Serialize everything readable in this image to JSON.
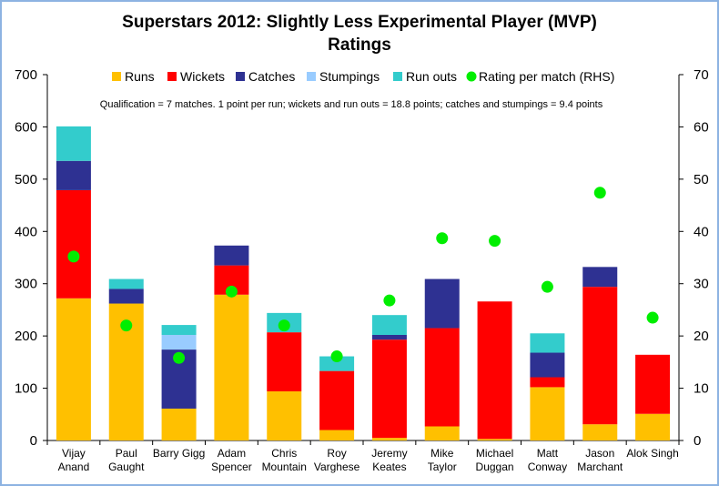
{
  "chart_data": {
    "type": "bar",
    "stacked": true,
    "title": "Superstars 2012: Slightly Less Experimental Player (MVP) Ratings",
    "title_lines": [
      "Superstars 2012: Slightly Less Experimental Player (MVP)",
      "Ratings"
    ],
    "annotation": "Qualification = 7 matches. 1 point per run; wickets and run outs = 18.8 points; catches and stumpings = 9.4 points",
    "categories": [
      [
        "Vijay",
        "Anand"
      ],
      [
        "Paul",
        "Gaught"
      ],
      [
        "Barry Gigg"
      ],
      [
        "Adam",
        "Spencer"
      ],
      [
        "Chris",
        "Mountain"
      ],
      [
        "Roy",
        "Varghese"
      ],
      [
        "Jeremy",
        "Keates"
      ],
      [
        "Mike",
        "Taylor"
      ],
      [
        "Michael",
        "Duggan"
      ],
      [
        "Matt",
        "Conway"
      ],
      [
        "Jason",
        "Marchant"
      ],
      [
        "Alok Singh"
      ]
    ],
    "series": [
      {
        "name": "Runs",
        "color": "#ffc000",
        "values": [
          272,
          262,
          61,
          279,
          94,
          20,
          5,
          27,
          3,
          102,
          31,
          51
        ]
      },
      {
        "name": "Wickets",
        "color": "#ff0000",
        "values": [
          207,
          0,
          0,
          56,
          113,
          113,
          188,
          188,
          263,
          19,
          263,
          113
        ]
      },
      {
        "name": "Catches",
        "color": "#2e3192",
        "values": [
          56,
          28,
          113,
          38,
          0,
          0,
          9,
          94,
          0,
          47,
          38,
          0
        ]
      },
      {
        "name": "Stumpings",
        "color": "#99ccff",
        "values": [
          0,
          0,
          28,
          0,
          0,
          0,
          0,
          0,
          0,
          0,
          0,
          0
        ]
      },
      {
        "name": "Run outs",
        "color": "#33cccc",
        "values": [
          66,
          19,
          19,
          0,
          37,
          28,
          38,
          0,
          0,
          37,
          0,
          0
        ]
      }
    ],
    "line_series": {
      "name": "Rating per match (RHS)",
      "color": "#00ee00",
      "values": [
        35.2,
        22.0,
        15.8,
        28.5,
        22.0,
        16.1,
        26.8,
        38.7,
        38.2,
        29.4,
        47.4,
        23.5
      ]
    },
    "ylim": [
      0,
      700
    ],
    "yticks": [
      "0",
      "100",
      "200",
      "300",
      "400",
      "500",
      "600",
      "700"
    ],
    "ylim_right": [
      0,
      70
    ],
    "yticks_right": [
      "0",
      "10",
      "20",
      "30",
      "40",
      "50",
      "60",
      "70"
    ],
    "legend_position": "top"
  }
}
